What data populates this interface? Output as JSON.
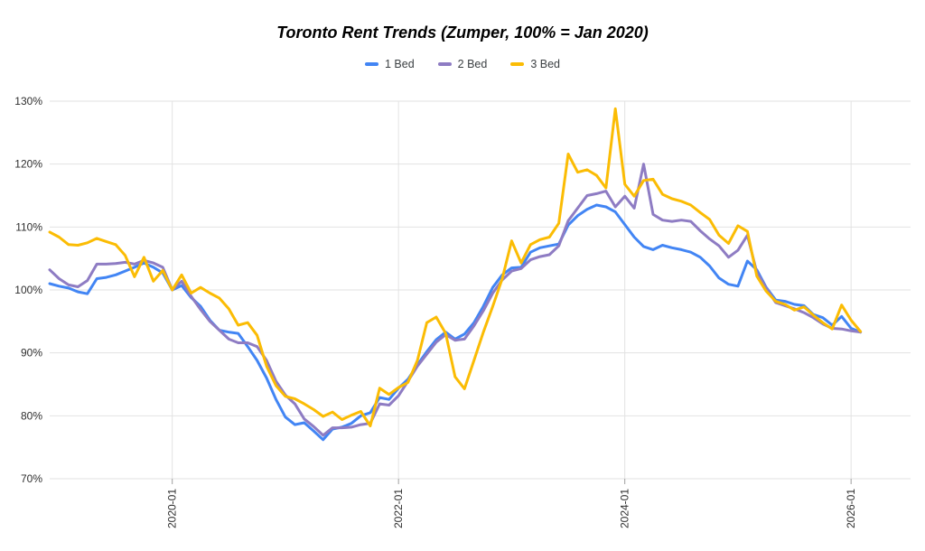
{
  "page": {
    "title": "Toronto Rent Trends (Zumper, 100% = Jan 2020)"
  },
  "chart_data": {
    "type": "line",
    "title": "Toronto Rent Trends (Zumper, 100% = Jan 2020)",
    "xlabel": "",
    "ylabel": "",
    "grid": true,
    "legend_position": "top-center",
    "ylim": [
      70,
      130
    ],
    "y_tick_values": [
      70,
      80,
      90,
      100,
      110,
      120,
      130
    ],
    "y_tick_labels": [
      "70%",
      "80%",
      "90%",
      "100%",
      "110%",
      "120%",
      "130%"
    ],
    "x_tick_indices": [
      13,
      37,
      61,
      85
    ],
    "x_tick_labels": [
      "2020-01",
      "2022-01",
      "2024-01",
      "2026-01"
    ],
    "x_labels": [
      "2018-12",
      "2019-01",
      "2019-02",
      "2019-03",
      "2019-04",
      "2019-05",
      "2019-06",
      "2019-07",
      "2019-08",
      "2019-09",
      "2019-10",
      "2019-11",
      "2019-12",
      "2020-01",
      "2020-02",
      "2020-03",
      "2020-04",
      "2020-05",
      "2020-06",
      "2020-07",
      "2020-08",
      "2020-09",
      "2020-10",
      "2020-11",
      "2020-12",
      "2021-01",
      "2021-02",
      "2021-03",
      "2021-04",
      "2021-05",
      "2021-06",
      "2021-07",
      "2021-08",
      "2021-09",
      "2021-10",
      "2021-11",
      "2021-12",
      "2022-01",
      "2022-02",
      "2022-03",
      "2022-04",
      "2022-05",
      "2022-06",
      "2022-07",
      "2022-08",
      "2022-09",
      "2022-10",
      "2022-11",
      "2022-12",
      "2023-01",
      "2023-02",
      "2023-03",
      "2023-04",
      "2023-05",
      "2023-06",
      "2023-07",
      "2023-08",
      "2023-09",
      "2023-10",
      "2023-11",
      "2023-12",
      "2024-01",
      "2024-02",
      "2024-03",
      "2024-04",
      "2024-05",
      "2024-06",
      "2024-07",
      "2024-08",
      "2024-09",
      "2024-10",
      "2024-11",
      "2024-12",
      "2025-01",
      "2025-02",
      "2025-03",
      "2025-04",
      "2025-05",
      "2025-06",
      "2025-07",
      "2025-08",
      "2025-09",
      "2025-10",
      "2025-11",
      "2025-12",
      "2026-01",
      "2026-02"
    ],
    "series": [
      {
        "name": "1 Bed",
        "color": "#4285F4",
        "values": [
          101.0,
          100.6,
          100.3,
          99.7,
          99.4,
          101.8,
          102.0,
          102.4,
          103.0,
          103.6,
          104.3,
          103.6,
          102.7,
          100.0,
          100.7,
          98.8,
          97.4,
          95.2,
          93.6,
          93.3,
          93.1,
          91.0,
          88.8,
          86.0,
          82.6,
          79.8,
          78.6,
          78.9,
          77.6,
          76.2,
          77.9,
          78.2,
          78.8,
          80.0,
          80.5,
          82.9,
          82.6,
          84.4,
          85.8,
          88.1,
          90.2,
          92.1,
          93.3,
          92.2,
          93.0,
          94.8,
          97.4,
          100.4,
          102.4,
          103.5,
          103.6,
          106.0,
          106.7,
          107.0,
          107.3,
          110.3,
          111.8,
          112.8,
          113.5,
          113.2,
          112.4,
          110.4,
          108.4,
          106.9,
          106.4,
          107.1,
          106.7,
          106.4,
          106.0,
          105.2,
          103.8,
          101.9,
          100.9,
          100.6,
          104.6,
          103.2,
          100.4,
          98.4,
          98.2,
          97.7,
          97.5,
          96.1,
          95.6,
          94.4,
          95.8,
          93.9,
          93.3
        ]
      },
      {
        "name": "2 Bed",
        "color": "#8E7CC3",
        "values": [
          103.2,
          101.8,
          100.8,
          100.5,
          101.5,
          104.1,
          104.1,
          104.2,
          104.4,
          104.1,
          104.7,
          104.3,
          103.6,
          100.0,
          101.4,
          99.0,
          96.9,
          95.0,
          93.6,
          92.2,
          91.6,
          91.6,
          91.0,
          88.8,
          85.5,
          83.3,
          81.9,
          79.5,
          78.3,
          76.9,
          78.1,
          78.1,
          78.2,
          78.6,
          78.8,
          81.9,
          81.7,
          83.2,
          85.5,
          87.9,
          89.8,
          91.7,
          92.9,
          92.0,
          92.2,
          94.3,
          96.7,
          99.5,
          101.6,
          103.0,
          103.4,
          104.8,
          105.3,
          105.6,
          107.0,
          111.0,
          113.0,
          115.0,
          115.3,
          115.7,
          113.2,
          114.9,
          113.0,
          120.0,
          112.0,
          111.1,
          110.9,
          111.1,
          110.9,
          109.4,
          108.1,
          107.0,
          105.2,
          106.3,
          108.7,
          102.8,
          100.3,
          98.0,
          97.5,
          97.0,
          96.4,
          95.6,
          94.6,
          93.9,
          93.8,
          93.5,
          93.3
        ]
      },
      {
        "name": "3 Bed",
        "color": "#FBBC04",
        "values": [
          109.2,
          108.4,
          107.2,
          107.1,
          107.5,
          108.2,
          107.7,
          107.2,
          105.5,
          102.1,
          105.2,
          101.4,
          103.1,
          100.0,
          102.4,
          99.5,
          100.4,
          99.5,
          98.7,
          97.0,
          94.4,
          94.8,
          92.8,
          87.9,
          84.8,
          83.1,
          82.7,
          81.9,
          81.0,
          79.9,
          80.6,
          79.4,
          80.1,
          80.7,
          78.4,
          84.4,
          83.4,
          84.5,
          85.3,
          88.8,
          94.8,
          95.7,
          93.1,
          86.2,
          84.3,
          88.8,
          93.3,
          97.4,
          101.8,
          107.8,
          104.3,
          107.2,
          108.0,
          108.4,
          110.6,
          121.6,
          118.7,
          119.1,
          118.2,
          116.2,
          128.8,
          116.8,
          114.9,
          117.4,
          117.6,
          115.2,
          114.5,
          114.1,
          113.5,
          112.3,
          111.2,
          108.7,
          107.4,
          110.2,
          109.3,
          102.2,
          99.8,
          98.2,
          97.7,
          96.8,
          97.3,
          96.0,
          94.8,
          93.8,
          97.6,
          95.2,
          93.4
        ]
      }
    ],
    "style": {
      "grid_color": "#e2e2e2",
      "tick_color": "#9e9e9e",
      "line_width": 3
    }
  }
}
